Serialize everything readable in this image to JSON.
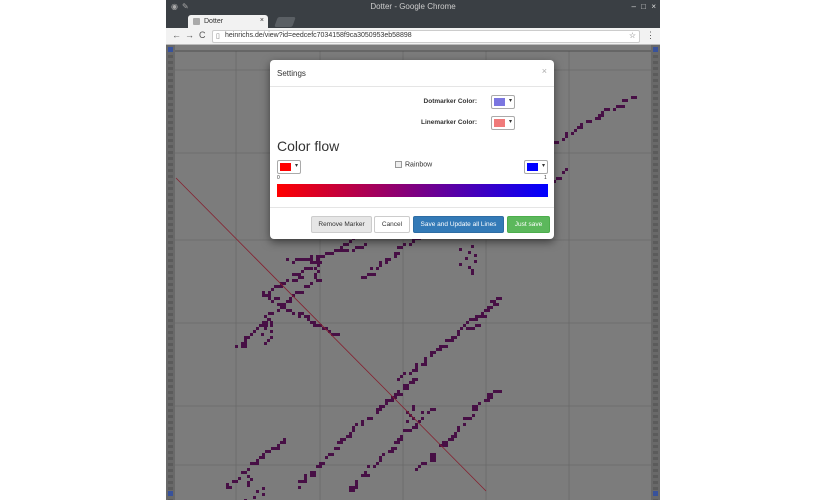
{
  "browser": {
    "window_title": "Dotter - Google Chrome",
    "tab_label": "Dotter",
    "tab_close": "×",
    "url": "heinrichs.de/view?id=eedcefc7034158f9ca3050953eb58898",
    "back": "←",
    "forward": "→",
    "reload": "C",
    "lock": "▯",
    "star": "☆",
    "menu": "⋮",
    "win_min": "–",
    "win_max": "□",
    "win_close": "×"
  },
  "modal": {
    "title": "Settings",
    "close": "×",
    "dotmarker_label": "Dotmarker Color:",
    "linemarker_label": "Linemarker Color:",
    "dotmarker_color": "#7b76e0",
    "linemarker_color": "#f07a7a",
    "color_flow_heading": "Color flow",
    "rainbow_label": "Rainbow",
    "flow_start_color": "#ff0000",
    "flow_end_color": "#0000ff",
    "flow_min": "0",
    "flow_max": "1",
    "buttons": {
      "remove_marker": "Remove Marker",
      "cancel": "Cancel",
      "save_update": "Save and Update all Lines",
      "just_save": "Just save"
    }
  },
  "colors": {
    "dot": "#4a1048",
    "line": "#8b2232",
    "background": "#808080",
    "grid": "#6e6e6e"
  }
}
